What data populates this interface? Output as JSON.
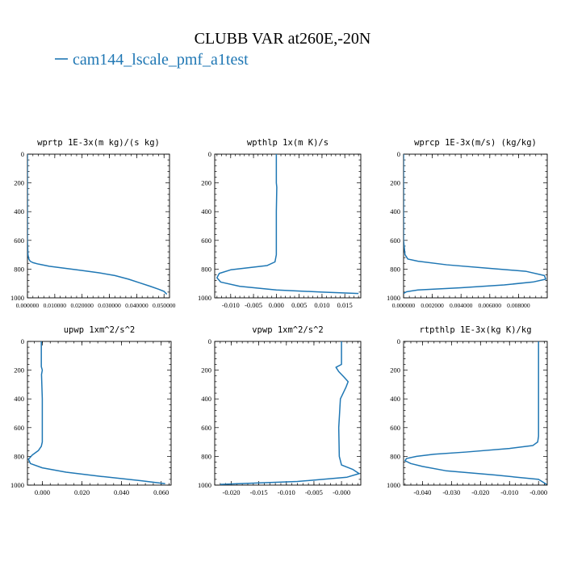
{
  "figure": {
    "title": "CLUBB VAR at260E,-20N",
    "legend": [
      {
        "name": "cam144_lscale_pmf_a1test",
        "color": "#1f77b4"
      }
    ]
  },
  "chart_data": [
    {
      "type": "line",
      "title": "wprtp  1E-3x(m kg)/(s kg)",
      "xlim": [
        0.0,
        0.052
      ],
      "ylim": [
        1000,
        0
      ],
      "xticks": [
        0.0,
        0.01,
        0.02,
        0.03,
        0.04,
        0.05
      ],
      "xtick_labels": [
        "0.000000",
        "0.010000",
        "0.020000",
        "0.030000",
        "0.040000",
        "0.050000"
      ],
      "yticks": [
        0,
        200,
        400,
        600,
        800,
        1000
      ],
      "ytick_labels": [
        "0",
        "200",
        "400",
        "600",
        "800",
        "1000"
      ],
      "series": [
        {
          "x": [
            0.0,
            0.0,
            0.0002,
            0.0005,
            0.001,
            0.002,
            0.004,
            0.008,
            0.014,
            0.02,
            0.026,
            0.032,
            0.037,
            0.041,
            0.045,
            0.048,
            0.05,
            0.051
          ],
          "y": [
            0,
            600,
            700,
            730,
            745,
            755,
            765,
            780,
            795,
            810,
            825,
            845,
            870,
            895,
            920,
            940,
            955,
            975
          ]
        }
      ]
    },
    {
      "type": "line",
      "title": "wpthlp  1x(m K)/s",
      "xlim": [
        -0.0135,
        0.0185
      ],
      "ylim": [
        1000,
        0
      ],
      "xticks": [
        -0.01,
        -0.005,
        0.0,
        0.005,
        0.01,
        0.015
      ],
      "xtick_labels": [
        "-0.010",
        "-0.005",
        "0.000",
        "0.005",
        "0.010",
        "0.015"
      ],
      "yticks": [
        0,
        200,
        400,
        600,
        800,
        1000
      ],
      "ytick_labels": [
        "0",
        "200",
        "400",
        "600",
        "800",
        "1000"
      ],
      "series": [
        {
          "x": [
            0.0,
            0.0,
            0.0001,
            0.0,
            0.0,
            -0.0003,
            -0.002,
            -0.006,
            -0.01,
            -0.0125,
            -0.013,
            -0.0122,
            -0.008,
            0.0,
            0.01,
            0.018
          ],
          "y": [
            0,
            200,
            230,
            400,
            700,
            750,
            775,
            790,
            805,
            830,
            860,
            890,
            920,
            945,
            960,
            970
          ]
        }
      ]
    },
    {
      "type": "line",
      "title": "wprcp  1E-3x(m/s) (kg/kg)",
      "xlim": [
        0.0,
        0.01
      ],
      "ylim": [
        1000,
        0
      ],
      "xticks": [
        0.0,
        0.002,
        0.004,
        0.006,
        0.008
      ],
      "xtick_labels": [
        "0.000000",
        "0.002000",
        "0.004000",
        "0.006000",
        "0.008000"
      ],
      "yticks": [
        0,
        200,
        400,
        600,
        800,
        1000
      ],
      "ytick_labels": [
        "0",
        "200",
        "400",
        "600",
        "800",
        "1000"
      ],
      "series": [
        {
          "x": [
            0.0,
            0.0,
            0.0001,
            0.0003,
            0.001,
            0.003,
            0.006,
            0.0085,
            0.0098,
            0.0099,
            0.009,
            0.007,
            0.004,
            0.001,
            0.0002,
            0.0
          ],
          "y": [
            0,
            600,
            700,
            730,
            745,
            770,
            795,
            815,
            845,
            870,
            890,
            910,
            930,
            945,
            958,
            970
          ]
        }
      ]
    },
    {
      "type": "line",
      "title": "upwp  1xm^2/s^2",
      "xlim": [
        -0.0075,
        0.065
      ],
      "ylim": [
        1000,
        0
      ],
      "xticks": [
        0.0,
        0.02,
        0.04,
        0.06
      ],
      "xtick_labels": [
        "0.000",
        "0.020",
        "0.040",
        "0.060"
      ],
      "yticks": [
        0,
        200,
        400,
        600,
        800,
        1000
      ],
      "ytick_labels": [
        "0",
        "200",
        "400",
        "600",
        "800",
        "1000"
      ],
      "series": [
        {
          "x": [
            -0.0005,
            -0.0005,
            -0.0005,
            0.0,
            -0.0004,
            0.0,
            0.0,
            -0.0005,
            -0.002,
            -0.005,
            -0.007,
            -0.006,
            0.0,
            0.012,
            0.03,
            0.05,
            0.062
          ],
          "y": [
            0,
            150,
            175,
            200,
            230,
            400,
            700,
            730,
            760,
            790,
            820,
            850,
            880,
            910,
            940,
            970,
            990
          ]
        }
      ]
    },
    {
      "type": "line",
      "title": "vpwp  1xm^2/s^2",
      "xlim": [
        -0.023,
        0.0035
      ],
      "ylim": [
        1000,
        0
      ],
      "xticks": [
        -0.02,
        -0.015,
        -0.01,
        -0.005,
        0.0
      ],
      "xtick_labels": [
        "-0.020",
        "-0.015",
        "-0.010",
        "-0.005",
        "-0.000"
      ],
      "yticks": [
        0,
        200,
        400,
        600,
        800,
        1000
      ],
      "ytick_labels": [
        "0",
        "200",
        "400",
        "600",
        "800",
        "1000"
      ],
      "series": [
        {
          "x": [
            0.0,
            0.0,
            -0.001,
            -0.0005,
            0.0005,
            0.0012,
            0.0008,
            -0.0002,
            -0.0005,
            -0.0004,
            0.0,
            0.002,
            0.0032,
            0.001,
            -0.008,
            -0.022
          ],
          "y": [
            0,
            160,
            180,
            210,
            250,
            280,
            320,
            400,
            600,
            800,
            860,
            890,
            920,
            945,
            975,
            995
          ]
        }
      ]
    },
    {
      "type": "line",
      "title": "rtpthlp  1E-3x(kg K)/kg",
      "xlim": [
        -0.0465,
        0.003
      ],
      "ylim": [
        1000,
        0
      ],
      "xticks": [
        -0.04,
        -0.03,
        -0.02,
        -0.01,
        0.0
      ],
      "xtick_labels": [
        "-0.040",
        "-0.030",
        "-0.020",
        "-0.010",
        "-0.000"
      ],
      "yticks": [
        0,
        200,
        400,
        600,
        800,
        1000
      ],
      "ytick_labels": [
        "0",
        "200",
        "400",
        "600",
        "800",
        "1000"
      ],
      "series": [
        {
          "x": [
            0.0,
            0.0,
            -0.0003,
            -0.002,
            -0.01,
            -0.025,
            -0.036,
            -0.042,
            -0.0455,
            -0.046,
            -0.044,
            -0.04,
            -0.032,
            -0.015,
            0.0,
            0.0028
          ],
          "y": [
            0,
            660,
            700,
            725,
            745,
            770,
            785,
            800,
            815,
            830,
            850,
            870,
            900,
            930,
            960,
            995
          ]
        }
      ]
    }
  ]
}
